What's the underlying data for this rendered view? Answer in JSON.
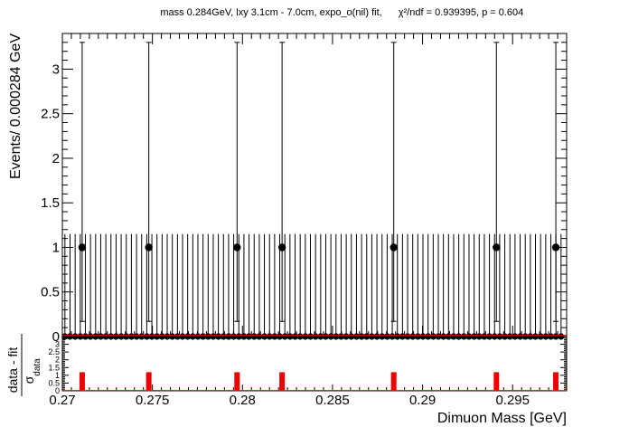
{
  "chart_data": {
    "type": "scatter",
    "title_main": "mass 0.284GeV, lxy 3.1cm - 7.0cm, expo_o(nil) fit,",
    "title_chi": "χ²/ndf = 0.939395, p = 0.604",
    "ylabel": "Events/ 0.000284 GeV",
    "xlabel": "Dimuon Mass [GeV]",
    "pull_ylabel_num": "data - fit",
    "pull_ylabel_den": "σ",
    "pull_ylabel_sub": "data",
    "xlim": [
      0.27,
      0.298
    ],
    "ylim": [
      0,
      3.4
    ],
    "pull_ylim": [
      0,
      3.5
    ],
    "bin_width": 0.000284,
    "x_ticks": [
      "0.27",
      "0.275",
      "0.28",
      "0.285",
      "0.29",
      "0.295"
    ],
    "x_tick_values": [
      0.27,
      0.275,
      0.28,
      0.285,
      0.29,
      0.295
    ],
    "y_ticks": [
      "0",
      "0.5",
      "1",
      "1.5",
      "2",
      "2.5",
      "3"
    ],
    "y_tick_values": [
      0,
      0.5,
      1,
      1.5,
      2,
      2.5,
      3
    ],
    "pull_ticks": [
      "0",
      "0.5",
      "1",
      "1.5",
      "2",
      "2.5",
      "3"
    ],
    "pull_tick_values": [
      0,
      0.5,
      1,
      1.5,
      2,
      2.5,
      3
    ],
    "events": [
      {
        "x": 0.2711,
        "y": 1,
        "err_up": 2.3,
        "err_down": 0.83
      },
      {
        "x": 0.2748,
        "y": 1,
        "err_up": 2.3,
        "err_down": 0.83
      },
      {
        "x": 0.2797,
        "y": 1,
        "err_up": 2.3,
        "err_down": 0.83
      },
      {
        "x": 0.2822,
        "y": 1,
        "err_up": 2.3,
        "err_down": 0.83
      },
      {
        "x": 0.2884,
        "y": 1,
        "err_up": 2.3,
        "err_down": 0.83
      },
      {
        "x": 0.2941,
        "y": 1,
        "err_up": 2.3,
        "err_down": 0.83
      },
      {
        "x": 0.2974,
        "y": 1,
        "err_up": 2.3,
        "err_down": 0.83
      }
    ],
    "empty_bin_error_up": 1.15,
    "fit_value": 0.007,
    "pulls": [
      {
        "x": 0.2711,
        "value": 1.2
      },
      {
        "x": 0.2748,
        "value": 1.2
      },
      {
        "x": 0.2797,
        "value": 1.2
      },
      {
        "x": 0.2822,
        "value": 1.2
      },
      {
        "x": 0.2884,
        "value": 1.2
      },
      {
        "x": 0.2941,
        "value": 1.2
      },
      {
        "x": 0.2974,
        "value": 1.2
      }
    ],
    "colors": {
      "data": "#000000",
      "fit": "#ff0000",
      "pull": "#ee0000",
      "axis": "#000000"
    }
  }
}
